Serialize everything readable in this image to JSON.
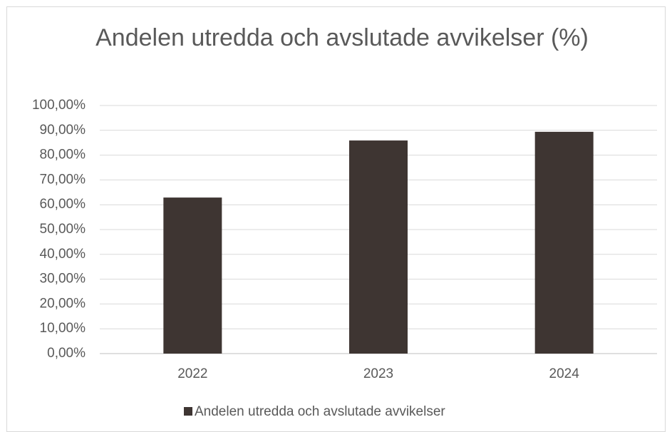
{
  "chart_data": {
    "type": "bar",
    "title": "Andelen utredda och avslutade avvikelser (%)",
    "categories": [
      "2022",
      "2023",
      "2024"
    ],
    "series": [
      {
        "name": "Andelen utredda och avslutade avvikelser",
        "color": "#3e3532",
        "values": [
          62.9,
          85.9,
          89.4
        ]
      }
    ],
    "ylim": [
      0,
      100
    ],
    "yticks": [
      {
        "value": 0,
        "label": "0,00%"
      },
      {
        "value": 10,
        "label": "10,00%"
      },
      {
        "value": 20,
        "label": "20,00%"
      },
      {
        "value": 30,
        "label": "30,00%"
      },
      {
        "value": 40,
        "label": "40,00%"
      },
      {
        "value": 50,
        "label": "50,00%"
      },
      {
        "value": 60,
        "label": "60,00%"
      },
      {
        "value": 70,
        "label": "70,00%"
      },
      {
        "value": 80,
        "label": "80,00%"
      },
      {
        "value": 90,
        "label": "90,00%"
      },
      {
        "value": 100,
        "label": "100,00%"
      }
    ],
    "grid": true,
    "legend": "bottom"
  }
}
